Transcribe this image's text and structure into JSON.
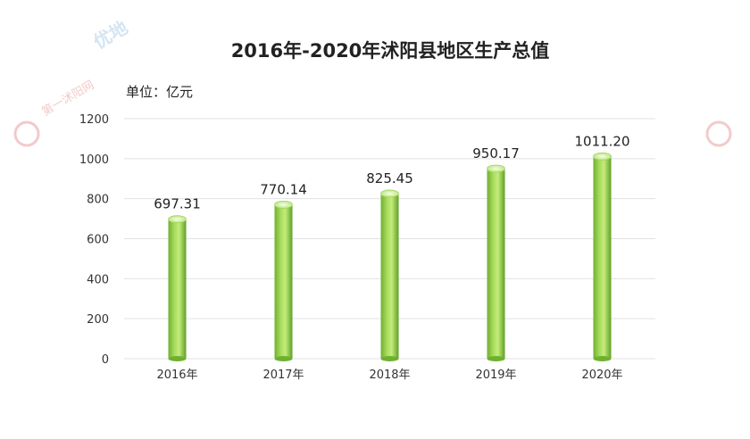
{
  "chart_data": {
    "type": "bar",
    "title": "2016年-2020年沭阳县地区生产总值",
    "unit_label": "单位：亿元",
    "categories": [
      "2016年",
      "2017年",
      "2018年",
      "2019年",
      "2020年"
    ],
    "values": [
      697.31,
      770.14,
      825.45,
      950.17,
      1011.2
    ],
    "value_labels": [
      "697.31",
      "770.14",
      "825.45",
      "950.17",
      "1011.20"
    ],
    "yticks": [
      "0",
      "200",
      "400",
      "600",
      "800",
      "1000",
      "1200"
    ],
    "ylim": [
      0,
      1200
    ],
    "grid": true,
    "bar_color": "#8cc63f"
  }
}
